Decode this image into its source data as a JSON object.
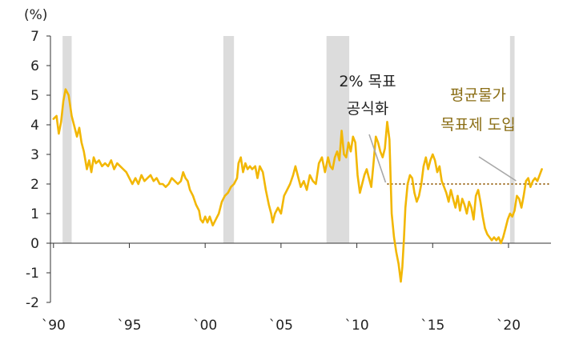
{
  "chart_data": {
    "type": "line",
    "unit_label": "(%)",
    "ylim": [
      -2,
      7
    ],
    "y_ticks": [
      -2,
      -1,
      0,
      1,
      2,
      3,
      4,
      5,
      6,
      7
    ],
    "xlim": [
      1989.8,
      2022.8
    ],
    "x_ticks": [
      {
        "label": "`90",
        "x": 1990
      },
      {
        "label": "`95",
        "x": 1995
      },
      {
        "label": "`00",
        "x": 2000
      },
      {
        "label": "`05",
        "x": 2005
      },
      {
        "label": "`10",
        "x": 2010
      },
      {
        "label": "`15",
        "x": 2015
      },
      {
        "label": "`20",
        "x": 2020
      }
    ],
    "recessions": [
      {
        "start": 1990.6,
        "end": 1991.2
      },
      {
        "start": 2001.2,
        "end": 2001.9
      },
      {
        "start": 2008.0,
        "end": 2009.5
      },
      {
        "start": 2020.1,
        "end": 2020.4
      }
    ],
    "target": {
      "value": 2,
      "start": 2012.0,
      "end": 2022.8
    },
    "annotations": [
      {
        "lines": [
          "2% 목표",
          "공식화"
        ],
        "color": "#222222",
        "x": 2012.0,
        "y": 2
      },
      {
        "lines": [
          "평균물가",
          "목표제 도입"
        ],
        "color": "#8a6d14",
        "x": 2020.6,
        "y": 2
      }
    ],
    "colors": {
      "line": "#f2b705",
      "recession": "#dcdcdc",
      "target": "#9c6a1e",
      "axis": "#333333",
      "leader": "#a8a8a8"
    },
    "series": [
      {
        "points": [
          [
            1990.0,
            4.2
          ],
          [
            1990.2,
            4.3
          ],
          [
            1990.35,
            3.7
          ],
          [
            1990.5,
            4.1
          ],
          [
            1990.65,
            4.8
          ],
          [
            1990.8,
            5.2
          ],
          [
            1991.0,
            5.0
          ],
          [
            1991.2,
            4.3
          ],
          [
            1991.4,
            3.9
          ],
          [
            1991.55,
            3.6
          ],
          [
            1991.7,
            3.9
          ],
          [
            1991.85,
            3.4
          ],
          [
            1992.0,
            3.1
          ],
          [
            1992.2,
            2.5
          ],
          [
            1992.35,
            2.8
          ],
          [
            1992.5,
            2.4
          ],
          [
            1992.65,
            2.9
          ],
          [
            1992.8,
            2.7
          ],
          [
            1993.0,
            2.8
          ],
          [
            1993.2,
            2.6
          ],
          [
            1993.4,
            2.7
          ],
          [
            1993.6,
            2.6
          ],
          [
            1993.8,
            2.8
          ],
          [
            1994.0,
            2.5
          ],
          [
            1994.2,
            2.7
          ],
          [
            1994.4,
            2.6
          ],
          [
            1994.6,
            2.5
          ],
          [
            1994.8,
            2.4
          ],
          [
            1995.0,
            2.2
          ],
          [
            1995.2,
            2.0
          ],
          [
            1995.4,
            2.2
          ],
          [
            1995.6,
            2.0
          ],
          [
            1995.8,
            2.3
          ],
          [
            1996.0,
            2.1
          ],
          [
            1996.2,
            2.2
          ],
          [
            1996.4,
            2.3
          ],
          [
            1996.6,
            2.1
          ],
          [
            1996.8,
            2.2
          ],
          [
            1997.0,
            2.0
          ],
          [
            1997.2,
            2.0
          ],
          [
            1997.4,
            1.9
          ],
          [
            1997.6,
            2.0
          ],
          [
            1997.8,
            2.2
          ],
          [
            1998.0,
            2.1
          ],
          [
            1998.2,
            2.0
          ],
          [
            1998.4,
            2.1
          ],
          [
            1998.55,
            2.4
          ],
          [
            1998.7,
            2.2
          ],
          [
            1998.85,
            2.1
          ],
          [
            1999.0,
            1.8
          ],
          [
            1999.2,
            1.6
          ],
          [
            1999.4,
            1.3
          ],
          [
            1999.6,
            1.1
          ],
          [
            1999.7,
            0.8
          ],
          [
            1999.85,
            0.7
          ],
          [
            2000.0,
            0.9
          ],
          [
            2000.15,
            0.7
          ],
          [
            2000.3,
            0.9
          ],
          [
            2000.5,
            0.6
          ],
          [
            2000.7,
            0.8
          ],
          [
            2000.9,
            1.0
          ],
          [
            2001.1,
            1.4
          ],
          [
            2001.3,
            1.6
          ],
          [
            2001.5,
            1.7
          ],
          [
            2001.7,
            1.9
          ],
          [
            2001.9,
            2.0
          ],
          [
            2002.1,
            2.2
          ],
          [
            2002.2,
            2.7
          ],
          [
            2002.35,
            2.9
          ],
          [
            2002.5,
            2.4
          ],
          [
            2002.65,
            2.7
          ],
          [
            2002.8,
            2.5
          ],
          [
            2002.95,
            2.6
          ],
          [
            2003.1,
            2.5
          ],
          [
            2003.3,
            2.6
          ],
          [
            2003.45,
            2.2
          ],
          [
            2003.6,
            2.6
          ],
          [
            2003.8,
            2.4
          ],
          [
            2004.0,
            1.8
          ],
          [
            2004.2,
            1.3
          ],
          [
            2004.35,
            1.0
          ],
          [
            2004.45,
            0.7
          ],
          [
            2004.6,
            1.0
          ],
          [
            2004.8,
            1.2
          ],
          [
            2005.0,
            1.0
          ],
          [
            2005.2,
            1.6
          ],
          [
            2005.4,
            1.8
          ],
          [
            2005.6,
            2.0
          ],
          [
            2005.8,
            2.3
          ],
          [
            2005.95,
            2.6
          ],
          [
            2006.1,
            2.3
          ],
          [
            2006.3,
            1.9
          ],
          [
            2006.5,
            2.1
          ],
          [
            2006.7,
            1.8
          ],
          [
            2006.9,
            2.3
          ],
          [
            2007.1,
            2.1
          ],
          [
            2007.3,
            2.0
          ],
          [
            2007.5,
            2.7
          ],
          [
            2007.7,
            2.9
          ],
          [
            2007.9,
            2.4
          ],
          [
            2008.1,
            2.9
          ],
          [
            2008.25,
            2.6
          ],
          [
            2008.4,
            2.5
          ],
          [
            2008.55,
            2.9
          ],
          [
            2008.7,
            3.1
          ],
          [
            2008.85,
            2.8
          ],
          [
            2009.0,
            3.8
          ],
          [
            2009.15,
            3.0
          ],
          [
            2009.3,
            2.9
          ],
          [
            2009.45,
            3.4
          ],
          [
            2009.6,
            3.1
          ],
          [
            2009.75,
            3.6
          ],
          [
            2009.9,
            3.4
          ],
          [
            2010.05,
            2.3
          ],
          [
            2010.2,
            1.7
          ],
          [
            2010.35,
            2.0
          ],
          [
            2010.5,
            2.3
          ],
          [
            2010.65,
            2.5
          ],
          [
            2010.8,
            2.2
          ],
          [
            2010.95,
            1.9
          ],
          [
            2011.1,
            2.7
          ],
          [
            2011.25,
            3.6
          ],
          [
            2011.4,
            3.4
          ],
          [
            2011.55,
            3.1
          ],
          [
            2011.7,
            2.9
          ],
          [
            2011.85,
            3.2
          ],
          [
            2012.0,
            4.1
          ],
          [
            2012.15,
            3.5
          ],
          [
            2012.3,
            1.0
          ],
          [
            2012.45,
            0.2
          ],
          [
            2012.6,
            -0.3
          ],
          [
            2012.75,
            -0.7
          ],
          [
            2012.9,
            -1.3
          ],
          [
            2013.0,
            -0.8
          ],
          [
            2013.1,
            0.1
          ],
          [
            2013.2,
            1.2
          ],
          [
            2013.35,
            2.0
          ],
          [
            2013.5,
            2.3
          ],
          [
            2013.65,
            2.2
          ],
          [
            2013.8,
            1.7
          ],
          [
            2013.95,
            1.4
          ],
          [
            2014.1,
            1.6
          ],
          [
            2014.25,
            2.0
          ],
          [
            2014.4,
            2.6
          ],
          [
            2014.55,
            2.9
          ],
          [
            2014.7,
            2.5
          ],
          [
            2014.85,
            2.8
          ],
          [
            2015.0,
            3.0
          ],
          [
            2015.15,
            2.8
          ],
          [
            2015.3,
            2.4
          ],
          [
            2015.45,
            2.6
          ],
          [
            2015.6,
            2.1
          ],
          [
            2015.75,
            1.9
          ],
          [
            2015.9,
            1.7
          ],
          [
            2016.05,
            1.4
          ],
          [
            2016.2,
            1.8
          ],
          [
            2016.35,
            1.5
          ],
          [
            2016.5,
            1.2
          ],
          [
            2016.65,
            1.6
          ],
          [
            2016.8,
            1.1
          ],
          [
            2016.95,
            1.5
          ],
          [
            2017.1,
            1.3
          ],
          [
            2017.25,
            1.0
          ],
          [
            2017.4,
            1.4
          ],
          [
            2017.55,
            1.2
          ],
          [
            2017.7,
            0.8
          ],
          [
            2017.85,
            1.6
          ],
          [
            2018.0,
            1.8
          ],
          [
            2018.15,
            1.4
          ],
          [
            2018.3,
            0.9
          ],
          [
            2018.45,
            0.5
          ],
          [
            2018.6,
            0.3
          ],
          [
            2018.75,
            0.2
          ],
          [
            2018.9,
            0.1
          ],
          [
            2019.05,
            0.2
          ],
          [
            2019.2,
            0.1
          ],
          [
            2019.35,
            0.2
          ],
          [
            2019.5,
            0.0
          ],
          [
            2019.65,
            0.2
          ],
          [
            2019.8,
            0.5
          ],
          [
            2019.95,
            0.8
          ],
          [
            2020.1,
            1.0
          ],
          [
            2020.25,
            0.9
          ],
          [
            2020.4,
            1.1
          ],
          [
            2020.55,
            1.6
          ],
          [
            2020.7,
            1.5
          ],
          [
            2020.85,
            1.2
          ],
          [
            2021.0,
            1.6
          ],
          [
            2021.15,
            2.1
          ],
          [
            2021.3,
            2.2
          ],
          [
            2021.45,
            1.9
          ],
          [
            2021.6,
            2.1
          ],
          [
            2021.75,
            2.2
          ],
          [
            2021.9,
            2.1
          ],
          [
            2022.05,
            2.3
          ],
          [
            2022.2,
            2.5
          ]
        ]
      }
    ]
  }
}
